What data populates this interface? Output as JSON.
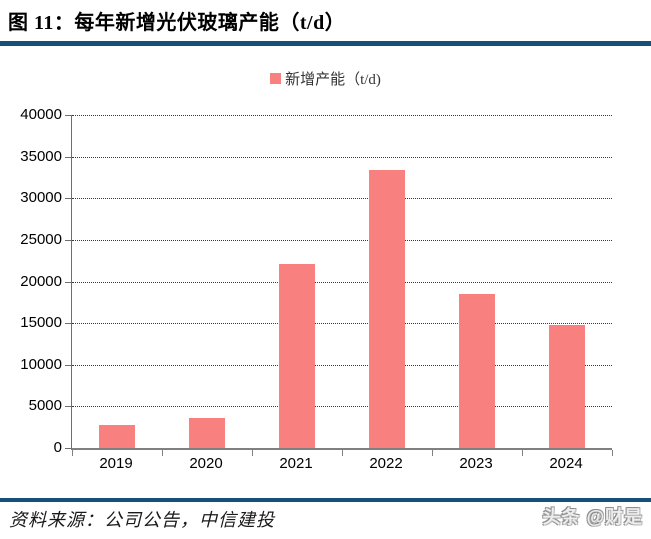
{
  "figure": {
    "title": "图 11：每年新增光伏玻璃产能（t/d）",
    "source": "资料来源：公司公告，中信建投",
    "watermark": "头条 @财是"
  },
  "legend": {
    "label": "新增产能（t/d)"
  },
  "colors": {
    "bar": "#F8807E",
    "rule": "#15507B",
    "axis": "#808080",
    "grid": "#3A3A3A"
  },
  "chart_data": {
    "type": "bar",
    "title": "每年新增光伏玻璃产能（t/d）",
    "categories": [
      "2019",
      "2020",
      "2021",
      "2022",
      "2023",
      "2024"
    ],
    "values": [
      2800,
      3650,
      22150,
      33450,
      18500,
      14800
    ],
    "series": [
      {
        "name": "新增产能（t/d)",
        "values": [
          2800,
          3650,
          22150,
          33450,
          18500,
          14800
        ]
      }
    ],
    "xlabel": "",
    "ylabel": "",
    "ylim": [
      0,
      40000
    ],
    "ytick_step": 5000,
    "yticks": [
      0,
      5000,
      10000,
      15000,
      20000,
      25000,
      30000,
      35000,
      40000
    ],
    "grid": true,
    "gridline_style": "dotted",
    "legend_position": "top",
    "bar_color": "#F8807E"
  }
}
